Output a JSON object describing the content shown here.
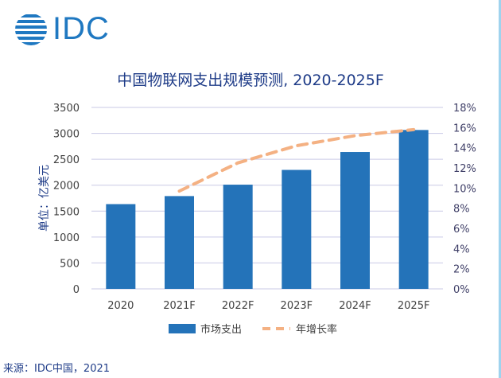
{
  "logo": {
    "text": "IDC"
  },
  "source": "来源：IDC中国，2021",
  "chart_data": {
    "type": "bar",
    "title": "中国物联网支出规模预测, 2020-2025F",
    "ylabel": "单位：亿美元",
    "categories": [
      "2020",
      "2021F",
      "2022F",
      "2023F",
      "2024F",
      "2025F"
    ],
    "ylim": [
      0,
      3500
    ],
    "yticks": [
      "0",
      "500",
      "1000",
      "1500",
      "2000",
      "2500",
      "3000",
      "3500"
    ],
    "y2lim": [
      0,
      18
    ],
    "y2ticks": [
      "0%",
      "2%",
      "4%",
      "6%",
      "8%",
      "10%",
      "12%",
      "14%",
      "16%",
      "18%"
    ],
    "grid": true,
    "legend_position": "bottom",
    "series": [
      {
        "name": "市场支出",
        "type": "bar",
        "color": "#2473b9",
        "values": [
          1635,
          1790,
          2010,
          2295,
          2640,
          3065
        ]
      },
      {
        "name": "年增长率",
        "type": "line",
        "style": "dashed",
        "axis": "right",
        "color": "#f4b183",
        "values": [
          null,
          9.7,
          12.5,
          14.2,
          15.2,
          15.8
        ]
      }
    ]
  }
}
